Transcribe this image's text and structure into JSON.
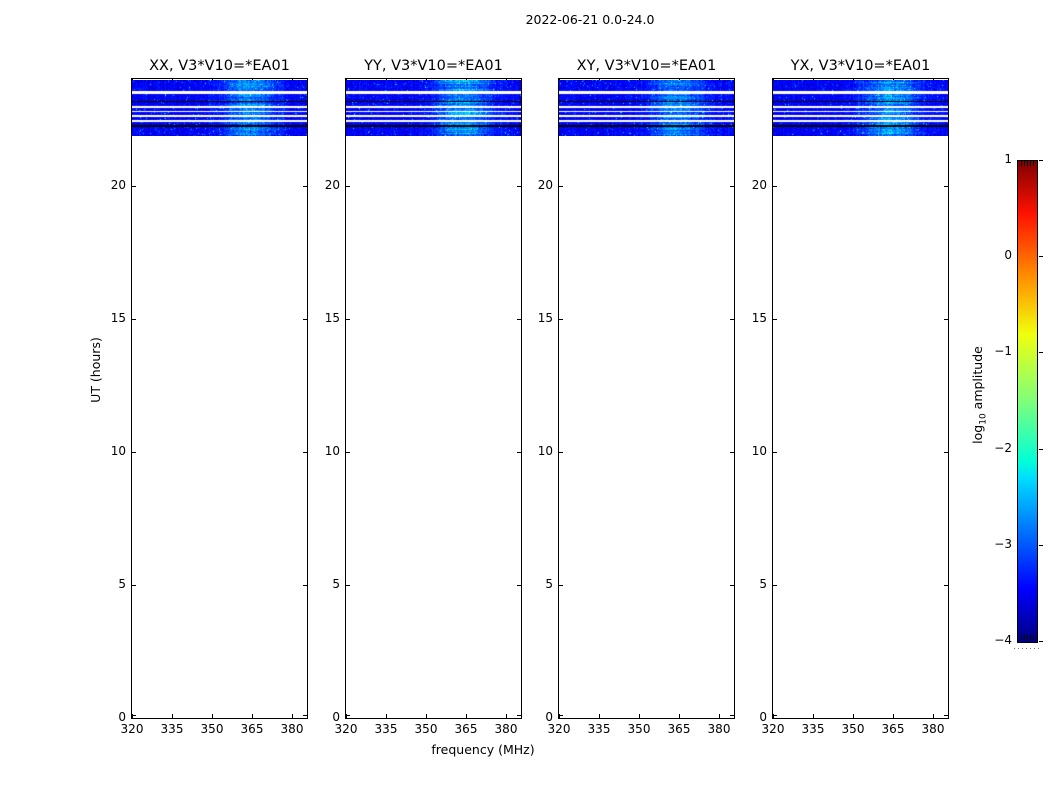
{
  "figure": {
    "title": "2022-06-21 0.0-24.0"
  },
  "chart_data": {
    "type": "heatmap",
    "title": "2022-06-21 0.0-24.0",
    "xlabel": "frequency (MHz)",
    "ylabel": "UT (hours)",
    "colorbar_label": {
      "pre": "log",
      "sub": "10",
      "post": " amplitude"
    },
    "x_ticks": [
      320,
      335,
      350,
      365,
      380
    ],
    "x_range_mhz": [
      320,
      385.5
    ],
    "y_ticks": [
      0,
      5,
      10,
      15,
      20
    ],
    "y_range_hours": [
      0,
      24
    ],
    "grid": false,
    "legend": "colorbar-right",
    "panels": [
      {
        "id": "xx",
        "title": "XX, V3*V10=*EA01",
        "seed": 11,
        "bright_boost": 1.0
      },
      {
        "id": "yy",
        "title": "YY, V3*V10=*EA01",
        "seed": 23,
        "bright_boost": 1.2
      },
      {
        "id": "xy",
        "title": "XY, V3*V10=*EA01",
        "seed": 37,
        "bright_boost": 1.05
      },
      {
        "id": "yx",
        "title": "YX, V3*V10=*EA01",
        "seed": 49,
        "bright_boost": 1.1
      }
    ],
    "colorbar": {
      "tick_labels": [
        "1",
        "0",
        "−1",
        "−2",
        "−3",
        "−4"
      ],
      "tick_values": [
        1,
        0,
        -1,
        -2,
        -3,
        -4
      ],
      "value_range": [
        -4,
        1
      ],
      "colormap": "jet"
    },
    "band": {
      "description": "Emission present only between UT 21.9 and 24.0; remainder of day blank",
      "ut_min": 21.87,
      "ut_max": 23.96,
      "background_log10_amplitude": -3.4,
      "bright_region_mhz": [
        356,
        372
      ],
      "bright_peak_log10_amplitude": -2.0,
      "flagged_color": "#ffffff",
      "off_color": "#000000",
      "stripes": [
        {
          "type": "signal",
          "ut": [
            23.53,
            23.96
          ]
        },
        {
          "type": "flagged",
          "ut": [
            23.44,
            23.53
          ]
        },
        {
          "type": "signal",
          "ut": [
            23.18,
            23.44
          ]
        },
        {
          "type": "off",
          "ut": [
            23.12,
            23.18
          ]
        },
        {
          "type": "signal",
          "ut": [
            22.97,
            23.12
          ]
        },
        {
          "type": "flagged",
          "ut": [
            22.92,
            22.97
          ]
        },
        {
          "type": "signal",
          "ut": [
            22.8,
            22.92
          ]
        },
        {
          "type": "flagged",
          "ut": [
            22.75,
            22.8
          ]
        },
        {
          "type": "signal",
          "ut": [
            22.63,
            22.75
          ]
        },
        {
          "type": "flagged",
          "ut": [
            22.56,
            22.63
          ]
        },
        {
          "type": "signal",
          "ut": [
            22.45,
            22.56
          ]
        },
        {
          "type": "flagged",
          "ut": [
            22.39,
            22.45
          ]
        },
        {
          "type": "signal",
          "ut": [
            22.28,
            22.39
          ]
        },
        {
          "type": "off",
          "ut": [
            22.21,
            22.28
          ]
        },
        {
          "type": "signal",
          "ut": [
            21.87,
            22.21
          ]
        }
      ]
    }
  }
}
